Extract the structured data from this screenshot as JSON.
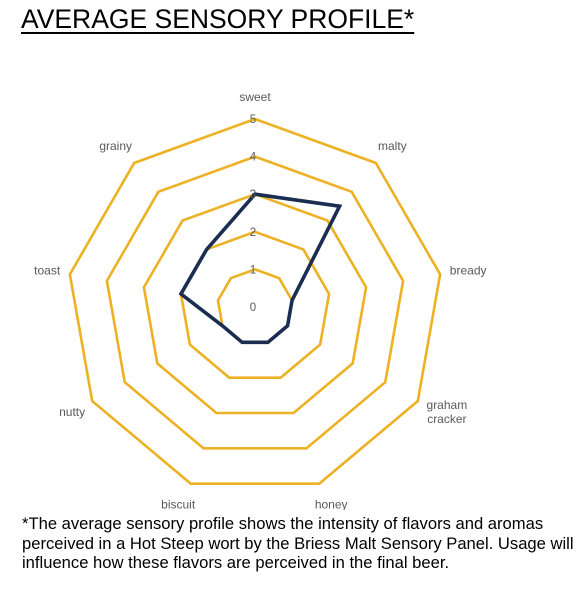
{
  "title": "AVERAGE SENSORY PROFILE*",
  "footnote": "*The average sensory profile shows the intensity of flavors and aromas perceived in a Hot Steep wort by the Briess Malt Sensory Panel. Usage will influence how these flavors are perceived in the final beer.",
  "colors": {
    "grid": "#EDB124",
    "series": "#1B2D50",
    "label": "#595959"
  },
  "chart_data": {
    "type": "radar",
    "categories": [
      "sweet",
      "malty",
      "bready",
      "graham\ncracker",
      "honey",
      "biscuit",
      "nutty",
      "toast",
      "grainy"
    ],
    "series": [
      {
        "values": [
          3,
          3.5,
          1,
          1,
          1,
          1,
          1,
          2,
          2
        ]
      }
    ],
    "rlim": [
      0,
      5
    ],
    "ticks": [
      0,
      1,
      2,
      3,
      4,
      5
    ],
    "grid": true
  }
}
